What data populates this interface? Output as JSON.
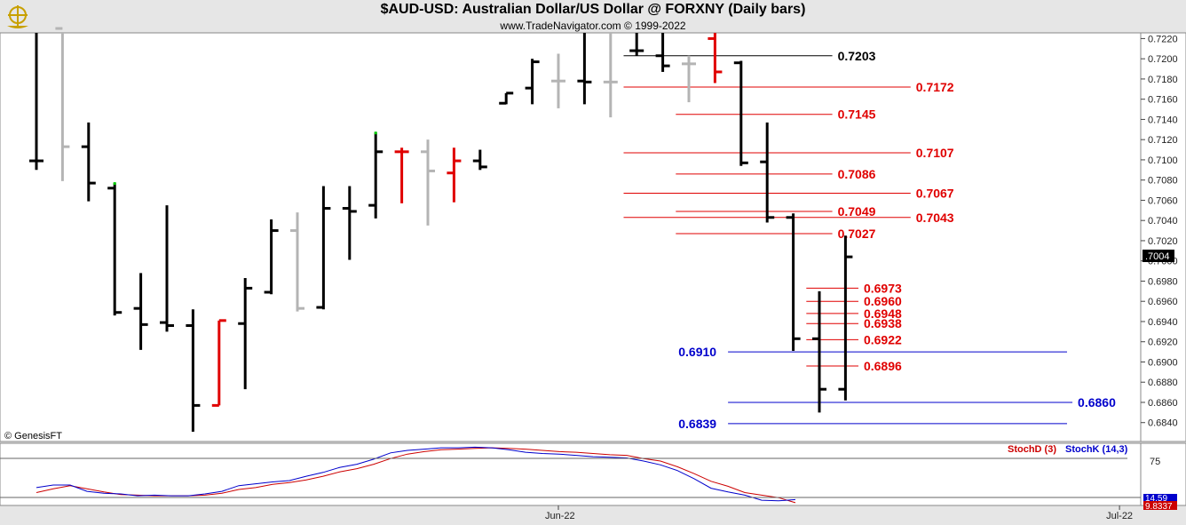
{
  "header": {
    "title": "$AUD-USD:  Australian Dollar/US Dollar @ FORXNY  (Daily bars)",
    "copyright": "www.TradeNavigator.com © 1999-2022"
  },
  "watermark": "© GenesisFT",
  "colors": {
    "up_bar": "#000000",
    "down_bar": "#b4b4b4",
    "highlight_bar": "#e00000",
    "level_red": "#e00000",
    "level_blue": "#0000cc",
    "level_black": "#000000",
    "stoch_d": "#cc0000",
    "stoch_k": "#0000cc"
  },
  "chart_data": {
    "type": "ohlc",
    "y_axis": {
      "min": 0.683,
      "max": 0.723,
      "step": 0.002,
      "tick_labels": [
        "0.7220",
        "0.7200",
        "0.7180",
        "0.7160",
        "0.7140",
        "0.7120",
        "0.7100",
        "0.7080",
        "0.7060",
        "0.7040",
        "0.7020",
        "0.7000",
        "0.6980",
        "0.6960",
        "0.6940",
        "0.6920",
        "0.6900",
        "0.6880",
        "0.6860",
        "0.6840"
      ],
      "last_price_label": ".7004"
    },
    "x_axis": {
      "tick_labels": [
        {
          "label": "Jun-22",
          "bar": 20
        },
        {
          "label": "Jul-22",
          "bar": 41.5
        }
      ]
    },
    "bars": [
      {
        "o": 0.7099,
        "h": 0.723,
        "l": 0.709,
        "c": 0.7099,
        "col": "black"
      },
      {
        "o": 0.723,
        "h": 0.723,
        "l": 0.7079,
        "c": 0.7113,
        "col": "gray"
      },
      {
        "o": 0.7113,
        "h": 0.7137,
        "l": 0.7059,
        "c": 0.7077,
        "col": "black"
      },
      {
        "o": 0.7072,
        "h": 0.7077,
        "l": 0.6946,
        "c": 0.6949,
        "col": "black",
        "hl": "g"
      },
      {
        "o": 0.6953,
        "h": 0.6988,
        "l": 0.6912,
        "c": 0.6937,
        "col": "black"
      },
      {
        "o": 0.6939,
        "h": 0.7055,
        "l": 0.693,
        "c": 0.6936,
        "col": "black"
      },
      {
        "o": 0.6936,
        "h": 0.6952,
        "l": 0.6831,
        "c": 0.6857,
        "col": "black"
      },
      {
        "o": 0.6857,
        "h": 0.6941,
        "l": 0.6857,
        "c": 0.6941,
        "col": "red"
      },
      {
        "o": 0.6938,
        "h": 0.6983,
        "l": 0.6873,
        "c": 0.6973,
        "col": "black"
      },
      {
        "o": 0.6969,
        "h": 0.7041,
        "l": 0.6967,
        "c": 0.703,
        "col": "black"
      },
      {
        "o": 0.703,
        "h": 0.7048,
        "l": 0.695,
        "c": 0.6953,
        "col": "gray"
      },
      {
        "o": 0.6954,
        "h": 0.7074,
        "l": 0.6952,
        "c": 0.7052,
        "col": "black"
      },
      {
        "o": 0.7052,
        "h": 0.7074,
        "l": 0.7001,
        "c": 0.7049,
        "col": "black"
      },
      {
        "o": 0.7055,
        "h": 0.7127,
        "l": 0.7042,
        "c": 0.7108,
        "col": "black",
        "hl": "g"
      },
      {
        "o": 0.7108,
        "h": 0.7112,
        "l": 0.7057,
        "c": 0.7108,
        "col": "red"
      },
      {
        "o": 0.7108,
        "h": 0.712,
        "l": 0.7035,
        "c": 0.7089,
        "col": "gray"
      },
      {
        "o": 0.7087,
        "h": 0.7112,
        "l": 0.7058,
        "c": 0.7099,
        "col": "red"
      },
      {
        "o": 0.7099,
        "h": 0.711,
        "l": 0.709,
        "c": 0.7093,
        "col": "black"
      },
      {
        "o": 0.7156,
        "h": 0.7166,
        "l": 0.7155,
        "c": 0.7166,
        "col": "black"
      },
      {
        "o": 0.7171,
        "h": 0.72,
        "l": 0.7155,
        "c": 0.7197,
        "col": "black"
      },
      {
        "o": 0.7178,
        "h": 0.7205,
        "l": 0.7151,
        "c": 0.7178,
        "col": "gray"
      },
      {
        "o": 0.7178,
        "h": 0.723,
        "l": 0.7155,
        "c": 0.7177,
        "col": "black"
      },
      {
        "o": 0.7177,
        "h": 0.723,
        "l": 0.7142,
        "c": 0.7177,
        "col": "gray"
      },
      {
        "o": 0.7208,
        "h": 0.723,
        "l": 0.7203,
        "c": 0.7208,
        "col": "black"
      },
      {
        "o": 0.7203,
        "h": 0.723,
        "l": 0.7187,
        "c": 0.7193,
        "col": "black"
      },
      {
        "o": 0.7195,
        "h": 0.7203,
        "l": 0.7157,
        "c": 0.7195,
        "col": "gray"
      },
      {
        "o": 0.722,
        "h": 0.723,
        "l": 0.7176,
        "c": 0.7187,
        "col": "red"
      },
      {
        "o": 0.7196,
        "h": 0.7198,
        "l": 0.7094,
        "c": 0.7097,
        "col": "black"
      },
      {
        "o": 0.7098,
        "h": 0.7137,
        "l": 0.7038,
        "c": 0.7043,
        "col": "black"
      },
      {
        "o": 0.7043,
        "h": 0.7047,
        "l": 0.6911,
        "c": 0.6923,
        "col": "black"
      },
      {
        "o": 0.6923,
        "h": 0.697,
        "l": 0.685,
        "c": 0.6873,
        "col": "black"
      },
      {
        "o": 0.6873,
        "h": 0.7025,
        "l": 0.6862,
        "c": 0.7004,
        "col": "black"
      }
    ],
    "levels": [
      {
        "value": 0.7203,
        "label": "0.7203",
        "color": "black",
        "from_bar": 22.5,
        "label_at": 30.7
      },
      {
        "value": 0.7172,
        "label": "0.7172",
        "color": "red",
        "from_bar": 22.5,
        "label_at": 33.7
      },
      {
        "value": 0.7145,
        "label": "0.7145",
        "color": "red",
        "from_bar": 24.5,
        "label_at": 30.7
      },
      {
        "value": 0.7107,
        "label": "0.7107",
        "color": "red",
        "from_bar": 22.5,
        "label_at": 33.7
      },
      {
        "value": 0.7086,
        "label": "0.7086",
        "color": "red",
        "from_bar": 24.5,
        "label_at": 30.7
      },
      {
        "value": 0.7067,
        "label": "0.7067",
        "color": "red",
        "from_bar": 22.5,
        "label_at": 33.7
      },
      {
        "value": 0.7049,
        "label": "0.7049",
        "color": "red",
        "from_bar": 24.5,
        "label_at": 30.7
      },
      {
        "value": 0.7043,
        "label": "0.7043",
        "color": "red",
        "from_bar": 22.5,
        "label_at": 33.7
      },
      {
        "value": 0.7027,
        "label": "0.7027",
        "color": "red",
        "from_bar": 24.5,
        "label_at": 30.7
      },
      {
        "value": 0.6973,
        "label": "0.6973",
        "color": "red",
        "from_bar": 29.5,
        "label_at": 31.7
      },
      {
        "value": 0.696,
        "label": "0.6960",
        "color": "red",
        "from_bar": 29.5,
        "label_at": 31.7
      },
      {
        "value": 0.6948,
        "label": "0.6948",
        "color": "red",
        "from_bar": 29.5,
        "label_at": 31.7
      },
      {
        "value": 0.6938,
        "label": "0.6938",
        "color": "red",
        "from_bar": 29.5,
        "label_at": 31.7
      },
      {
        "value": 0.6922,
        "label": "0.6922",
        "color": "red",
        "from_bar": 29.5,
        "label_at": 31.7
      },
      {
        "value": 0.691,
        "label": "0.6910",
        "color": "blue",
        "from_bar": 26.5,
        "label_at": 24.6,
        "label_side": "left"
      },
      {
        "value": 0.6896,
        "label": "0.6896",
        "color": "red",
        "from_bar": 29.5,
        "label_at": 31.7
      },
      {
        "value": 0.686,
        "label": "0.6860",
        "color": "blue",
        "from_bar": 26.5,
        "label_at": 39.9
      },
      {
        "value": 0.6839,
        "label": "0.6839",
        "color": "blue",
        "from_bar": 26.5,
        "label_at": 24.6,
        "label_side": "left"
      }
    ],
    "stochastic": {
      "legend": [
        {
          "label": "StochD (3)",
          "color": "red"
        },
        {
          "label": "StochK (14,3)",
          "color": "blue"
        }
      ],
      "y_tick_label": "75",
      "value_labels": [
        "14.59",
        "9.8337"
      ],
      "k_values": [
        34,
        38,
        38,
        28,
        25,
        24,
        21,
        22,
        21,
        21,
        24,
        28,
        37,
        40,
        43,
        45,
        52,
        58,
        66,
        71,
        79,
        89,
        93,
        95,
        97,
        97,
        98,
        97,
        94,
        90,
        88,
        87,
        85,
        83,
        82,
        81,
        76,
        70,
        61,
        48,
        33,
        27,
        22,
        14,
        13,
        15
      ],
      "d_values": [
        26,
        32,
        37,
        32,
        27,
        23,
        22,
        21,
        21,
        21,
        22,
        25,
        31,
        34,
        39,
        42,
        46,
        52,
        59,
        64,
        71,
        80,
        87,
        91,
        94,
        95,
        96,
        97,
        96,
        95,
        93,
        91,
        90,
        88,
        86,
        85,
        80,
        76,
        67,
        56,
        44,
        36,
        26,
        22,
        18,
        10
      ]
    }
  }
}
